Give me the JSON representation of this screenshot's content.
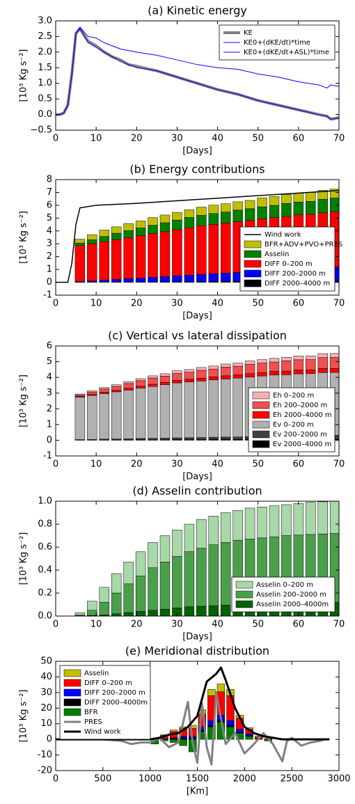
{
  "chart_data": [
    {
      "type": "line",
      "title": "(a) Kinetic energy",
      "xlabel": "[Days]",
      "ylabel": "[10³ Kg s⁻²]",
      "xlim": [
        0,
        70
      ],
      "xticks": [
        0,
        10,
        20,
        30,
        40,
        50,
        60,
        70
      ],
      "ylim": [
        -0.5,
        3.0
      ],
      "yticks": [
        {
          "value": -0.5,
          "label": "−0.5"
        },
        {
          "value": 0,
          "label": "0.0"
        },
        {
          "value": 0.5,
          "label": "0.5"
        },
        {
          "value": 1,
          "label": "1.0"
        },
        {
          "value": 1.5,
          "label": "1.5"
        },
        {
          "value": 2,
          "label": "2.0"
        },
        {
          "value": 2.5,
          "label": "2.5"
        },
        {
          "value": 3,
          "label": "3.0"
        }
      ],
      "legend": "upper right",
      "series": [
        {
          "name": "KE",
          "kind": "line",
          "color": "#808080",
          "linewidth": 4,
          "x": [
            0,
            1,
            2,
            3,
            4,
            5,
            6,
            8,
            10,
            12,
            14,
            16,
            18,
            20,
            25,
            30,
            35,
            40,
            45,
            50,
            55,
            60,
            65,
            67,
            68,
            70
          ],
          "values": [
            0,
            0,
            0.05,
            0.3,
            1.3,
            2.6,
            2.75,
            2.35,
            2.2,
            2.0,
            1.85,
            1.75,
            1.6,
            1.55,
            1.4,
            1.2,
            1.0,
            0.8,
            0.65,
            0.45,
            0.3,
            0.15,
            0.0,
            -0.05,
            -0.15,
            -0.1
          ]
        },
        {
          "name": "KE0+(dKE/dt)*time",
          "kind": "line",
          "color": "#0000ff",
          "linewidth": 1,
          "x": [
            0,
            1,
            2,
            3,
            4,
            5,
            6,
            8,
            10,
            12,
            14,
            16,
            18,
            20,
            25,
            30,
            35,
            40,
            45,
            50,
            55,
            60,
            65,
            67,
            68,
            70
          ],
          "values": [
            0,
            0,
            0.05,
            0.3,
            1.3,
            2.6,
            2.75,
            2.3,
            2.15,
            2.0,
            1.85,
            1.7,
            1.6,
            1.5,
            1.4,
            1.2,
            1.0,
            0.8,
            0.65,
            0.45,
            0.3,
            0.15,
            0.0,
            -0.05,
            -0.15,
            -0.1
          ]
        },
        {
          "name": "KE0+(dKE/dt+ASL)*time",
          "kind": "line",
          "color": "#0000ff",
          "linewidth": 1,
          "x": [
            0,
            1,
            2,
            3,
            4,
            5,
            6,
            8,
            10,
            12,
            14,
            16,
            18,
            20,
            25,
            30,
            35,
            40,
            45,
            50,
            55,
            60,
            65,
            67,
            68,
            70
          ],
          "values": [
            0,
            0,
            0.05,
            0.3,
            1.3,
            2.6,
            2.8,
            2.5,
            2.45,
            2.3,
            2.2,
            2.1,
            2.05,
            2.0,
            1.9,
            1.75,
            1.6,
            1.5,
            1.45,
            1.3,
            1.2,
            1.05,
            0.95,
            0.85,
            0.95,
            0.9
          ]
        }
      ]
    },
    {
      "type": "bar",
      "title": "(b) Energy contributions",
      "xlabel": "[Days]",
      "ylabel": "[10³ Kg s⁻²]",
      "xlim": [
        0,
        70
      ],
      "xticks": [
        0,
        10,
        20,
        30,
        40,
        50,
        60,
        70
      ],
      "ylim": [
        -1,
        8
      ],
      "yticks": [
        -1,
        0,
        1,
        2,
        3,
        4,
        5,
        6,
        7,
        8
      ],
      "legend": "lower right",
      "x": [
        3,
        6,
        9,
        12,
        15,
        18,
        21,
        24,
        27,
        30,
        33,
        36,
        39,
        42,
        45,
        48,
        51,
        54,
        57,
        60,
        63,
        66,
        69
      ],
      "series": [
        {
          "name": "Wind work",
          "kind": "line",
          "color": "#000000",
          "linewidth": 1.5,
          "x": [
            0,
            3,
            4,
            5,
            6,
            10,
            20,
            30,
            40,
            50,
            60,
            70
          ],
          "values": [
            0,
            0,
            1.5,
            4.5,
            5.8,
            6.0,
            6.15,
            6.35,
            6.55,
            6.75,
            6.95,
            7.15
          ]
        },
        {
          "name": "BFR+ADV+PVO+PRES",
          "color": "#bfbf00",
          "values": [
            0,
            0.3,
            0.4,
            0.5,
            0.5,
            0.55,
            0.55,
            0.6,
            0.6,
            0.6,
            0.6,
            0.65,
            0.65,
            0.65,
            0.65,
            0.65,
            0.7,
            0.7,
            0.7,
            0.7,
            0.7,
            0.7,
            0.7
          ]
        },
        {
          "name": "Asselin",
          "color": "#008000",
          "values": [
            0,
            0.2,
            0.3,
            0.4,
            0.5,
            0.55,
            0.6,
            0.65,
            0.7,
            0.75,
            0.8,
            0.8,
            0.85,
            0.85,
            0.9,
            0.9,
            0.95,
            0.95,
            1,
            1,
            1,
            1.05,
            1.05
          ]
        },
        {
          "name": "DIFF 0–200 m",
          "color": "#ff0000",
          "values": [
            0,
            2.8,
            2.9,
            3.0,
            3.1,
            3.2,
            3.3,
            3.4,
            3.5,
            3.6,
            3.7,
            3.8,
            3.85,
            3.9,
            3.95,
            4.0,
            4.05,
            4.1,
            4.15,
            4.2,
            4.2,
            4.25,
            4.3
          ]
        },
        {
          "name": "DIFF 200–2000 m",
          "color": "#0000ff",
          "values": [
            0,
            0.05,
            0.1,
            0.15,
            0.2,
            0.25,
            0.3,
            0.35,
            0.4,
            0.45,
            0.5,
            0.55,
            0.6,
            0.65,
            0.7,
            0.75,
            0.8,
            0.85,
            0.9,
            0.95,
            1.0,
            1.05,
            1.1
          ]
        },
        {
          "name": "DIFF 2000–4000 m",
          "color": "#000000",
          "values": [
            0,
            0.01,
            0.01,
            0.02,
            0.02,
            0.03,
            0.03,
            0.04,
            0.04,
            0.05,
            0.05,
            0.06,
            0.06,
            0.07,
            0.07,
            0.08,
            0.08,
            0.09,
            0.09,
            0.1,
            0.1,
            0.11,
            0.11
          ]
        }
      ]
    },
    {
      "type": "bar",
      "title": "(c) Vertical vs lateral dissipation",
      "xlabel": "[Days]",
      "ylabel": "[10³ Kg s⁻²]",
      "xlim": [
        0,
        70
      ],
      "xticks": [
        0,
        10,
        20,
        30,
        40,
        50,
        60,
        70
      ],
      "ylim": [
        -1,
        6
      ],
      "yticks": [
        -1,
        0,
        1,
        2,
        3,
        4,
        5,
        6
      ],
      "legend": "lower right",
      "x": [
        3,
        6,
        9,
        12,
        15,
        18,
        21,
        24,
        27,
        30,
        33,
        36,
        39,
        42,
        45,
        48,
        51,
        54,
        57,
        60,
        63,
        66,
        69
      ],
      "series": [
        {
          "name": "Eh 0–200 m",
          "color": "#f7b0b0",
          "values": [
            0,
            0.05,
            0.07,
            0.09,
            0.1,
            0.12,
            0.13,
            0.14,
            0.15,
            0.16,
            0.17,
            0.18,
            0.19,
            0.2,
            0.2,
            0.21,
            0.22,
            0.23,
            0.23,
            0.24,
            0.24,
            0.25,
            0.25
          ]
        },
        {
          "name": "Eh 200–2000 m",
          "color": "#f05050",
          "values": [
            0,
            0.1,
            0.15,
            0.2,
            0.25,
            0.3,
            0.35,
            0.4,
            0.4,
            0.45,
            0.45,
            0.5,
            0.5,
            0.55,
            0.55,
            0.6,
            0.6,
            0.6,
            0.65,
            0.65,
            0.65,
            0.7,
            0.7
          ]
        },
        {
          "name": "Eh 2000–4000 m",
          "color": "#ff0000",
          "values": [
            0,
            0.05,
            0.07,
            0.09,
            0.1,
            0.12,
            0.13,
            0.14,
            0.15,
            0.16,
            0.17,
            0.18,
            0.19,
            0.2,
            0.2,
            0.21,
            0.22,
            0.23,
            0.23,
            0.24,
            0.24,
            0.25,
            0.25
          ]
        },
        {
          "name": "Ev 0–200 m",
          "color": "#b0b0b0",
          "values": [
            0,
            2.7,
            2.8,
            2.9,
            3.0,
            3.1,
            3.2,
            3.3,
            3.4,
            3.5,
            3.55,
            3.6,
            3.65,
            3.7,
            3.75,
            3.8,
            3.85,
            3.9,
            3.9,
            3.95,
            3.95,
            4.0,
            4.0
          ]
        },
        {
          "name": "Ev 200–2000 m",
          "color": "#404040",
          "values": [
            0,
            0.03,
            0.04,
            0.05,
            0.06,
            0.07,
            0.08,
            0.09,
            0.1,
            0.11,
            0.12,
            0.13,
            0.14,
            0.15,
            0.16,
            0.17,
            0.18,
            0.19,
            0.2,
            0.21,
            0.22,
            0.23,
            0.24
          ]
        },
        {
          "name": "Ev 2000–4000 m",
          "color": "#000000",
          "values": [
            0,
            0.01,
            0.01,
            0.02,
            0.02,
            0.02,
            0.03,
            0.03,
            0.03,
            0.04,
            0.04,
            0.04,
            0.05,
            0.05,
            0.05,
            0.06,
            0.06,
            0.06,
            0.07,
            0.07,
            0.07,
            0.08,
            0.08
          ]
        }
      ]
    },
    {
      "type": "bar",
      "title": "(d) Asselin contribution",
      "xlabel": "[Days]",
      "ylabel": "[10³ Kg s⁻²]",
      "xlim": [
        0,
        70
      ],
      "xticks": [
        0,
        10,
        20,
        30,
        40,
        50,
        60,
        70
      ],
      "ylim": [
        0,
        1
      ],
      "yticks": [
        {
          "value": 0,
          "label": "0.0"
        },
        {
          "value": 0.2,
          "label": "0.2"
        },
        {
          "value": 0.4,
          "label": "0.4"
        },
        {
          "value": 0.6,
          "label": "0.6"
        },
        {
          "value": 0.8,
          "label": "0.8"
        },
        {
          "value": 1,
          "label": "1.0"
        }
      ],
      "legend": "lower right",
      "x": [
        3,
        6,
        9,
        12,
        15,
        18,
        21,
        24,
        27,
        30,
        33,
        36,
        39,
        42,
        45,
        48,
        51,
        54,
        57,
        60,
        63,
        66,
        69
      ],
      "series": [
        {
          "name": "Asselin 0–200 m",
          "color": "#a8d8a8",
          "values": [
            0,
            0.02,
            0.08,
            0.13,
            0.17,
            0.19,
            0.21,
            0.22,
            0.23,
            0.23,
            0.24,
            0.25,
            0.25,
            0.26,
            0.26,
            0.27,
            0.27,
            0.27,
            0.27,
            0.275,
            0.28,
            0.28,
            0.28
          ]
        },
        {
          "name": "Asselin 200–2000 m",
          "color": "#4aa04a",
          "values": [
            0,
            0.01,
            0.045,
            0.11,
            0.18,
            0.25,
            0.31,
            0.37,
            0.41,
            0.45,
            0.48,
            0.505,
            0.53,
            0.545,
            0.56,
            0.565,
            0.57,
            0.58,
            0.585,
            0.59,
            0.59,
            0.595,
            0.6
          ]
        },
        {
          "name": "Asselin 2000–4000m",
          "color": "#006400",
          "values": [
            0,
            0,
            0.005,
            0.01,
            0.02,
            0.03,
            0.04,
            0.05,
            0.06,
            0.07,
            0.08,
            0.085,
            0.09,
            0.095,
            0.1,
            0.105,
            0.11,
            0.11,
            0.115,
            0.115,
            0.12,
            0.12,
            0.12
          ]
        }
      ]
    },
    {
      "type": "bar",
      "title": "(e) Meridional distribution",
      "xlabel": "[Km]",
      "ylabel": "[10³ Kg s⁻²]",
      "xlim": [
        0,
        3000
      ],
      "xticks": [
        0,
        500,
        1000,
        1500,
        2000,
        2500,
        3000
      ],
      "ylim": [
        -20,
        50
      ],
      "yticks": [
        -20,
        -10,
        0,
        10,
        20,
        30,
        40,
        50
      ],
      "legend": "upper left",
      "x": [
        1050,
        1150,
        1250,
        1350,
        1450,
        1550,
        1650,
        1750,
        1850,
        1950,
        2050,
        2150,
        2250,
        2350
      ],
      "series": [
        {
          "name": "Asselin",
          "color": "#bfbf00",
          "values": [
            0,
            0.5,
            1,
            1,
            2,
            3,
            4,
            5,
            4,
            2,
            1,
            0.5,
            0,
            0
          ]
        },
        {
          "name": "DIFF 0–200 m",
          "color": "#ff0000",
          "values": [
            0,
            2,
            4,
            5,
            5,
            8,
            16,
            15,
            16,
            7,
            3,
            1,
            0.5,
            0
          ]
        },
        {
          "name": "DIFF 200–2000 m",
          "color": "#0000ff",
          "values": [
            0,
            0.5,
            0.5,
            1,
            1,
            2,
            3,
            3,
            3,
            2,
            1,
            0.5,
            0,
            0
          ]
        },
        {
          "name": "DIFF 2000–4000m",
          "color": "#000000",
          "values": [
            0,
            0,
            0.5,
            1,
            1,
            1,
            1,
            1.5,
            1,
            0.5,
            0.5,
            0,
            0,
            0
          ]
        },
        {
          "name": "BFR",
          "color": "#008000",
          "values": [
            -3,
            -1,
            -2,
            -4,
            -8,
            5,
            8,
            11,
            8,
            4,
            2,
            0,
            -1,
            0
          ]
        },
        {
          "name": "PRES",
          "kind": "line",
          "color": "#808080",
          "linewidth": 3,
          "x": [
            0,
            500,
            700,
            800,
            900,
            1000,
            1100,
            1200,
            1300,
            1400,
            1450,
            1500,
            1550,
            1600,
            1650,
            1700,
            1800,
            1900,
            2000,
            2100,
            2200,
            2300,
            2400,
            2450,
            2500,
            2600,
            2700,
            2800,
            2850
          ],
          "values": [
            0,
            0,
            -1,
            -3,
            -2,
            -2,
            1,
            -5,
            -2,
            24,
            -2,
            -15,
            23,
            -5,
            -16,
            30,
            -3,
            4,
            -9,
            -3,
            4,
            -3,
            -14,
            -1,
            1,
            -4,
            -2,
            -1,
            0
          ]
        },
        {
          "name": "Wind work",
          "kind": "line",
          "color": "#000000",
          "linewidth": 3,
          "x": [
            0,
            500,
            1000,
            1100,
            1200,
            1300,
            1400,
            1500,
            1600,
            1700,
            1750,
            1800,
            1900,
            2000,
            2100,
            2200,
            2300,
            2400,
            2500,
            2600,
            2700,
            2800,
            2900
          ],
          "values": [
            0,
            0,
            0,
            1,
            3,
            4,
            8,
            15,
            37,
            42,
            46,
            38,
            20,
            8,
            4,
            2,
            1,
            0,
            0,
            0,
            0,
            0,
            0
          ]
        }
      ]
    }
  ]
}
